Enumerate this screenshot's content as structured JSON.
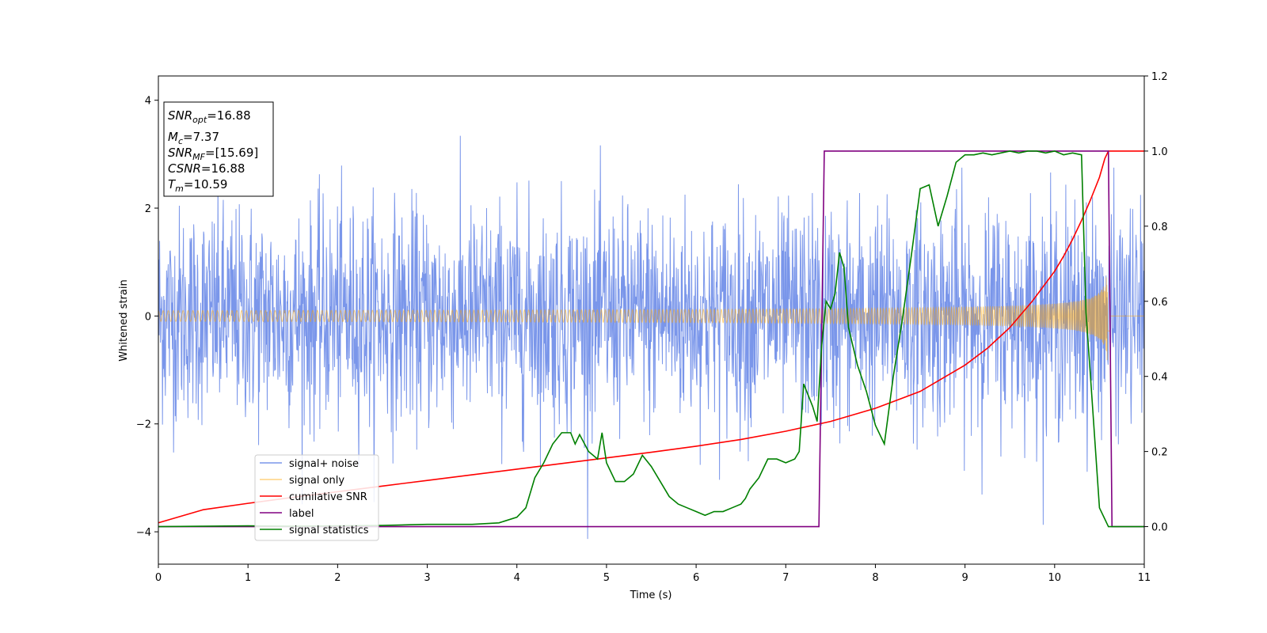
{
  "chart_data": {
    "type": "line",
    "title": "",
    "xlabel": "Time (s)",
    "ylabel": "Whitened strain",
    "y2label": "",
    "xlim": [
      0,
      11
    ],
    "ylim": [
      -4.6,
      4.45
    ],
    "y2lim": [
      -0.1,
      1.2
    ],
    "x_ticks": [
      0,
      1,
      2,
      3,
      4,
      5,
      6,
      7,
      8,
      9,
      10,
      11
    ],
    "y_ticks": [
      -4,
      -2,
      0,
      2,
      4
    ],
    "y2_ticks": [
      "0.0",
      "0.2",
      "0.4",
      "0.6",
      "0.8",
      "1.0",
      "1.2"
    ],
    "grid": false,
    "legend_position": "lower-left",
    "annotation": {
      "lines": [
        {
          "base": "SNR",
          "sub": "opt",
          "rest": "=16.88"
        },
        {
          "base": "M",
          "sub": "c",
          "rest": "=7.37"
        },
        {
          "base": "SNR",
          "sub": "MF",
          "rest": "=[15.69]"
        },
        {
          "base": "CSNR",
          "sub": "",
          "rest": "=16.88"
        },
        {
          "base": "T",
          "sub": "m",
          "rest": "=10.59"
        }
      ]
    },
    "series": [
      {
        "name": "signal+ noise",
        "axis": "left",
        "color": "#4169e1",
        "kind": "noise",
        "sigma": 1.0,
        "points": 2400
      },
      {
        "name": "signal only",
        "axis": "left",
        "color": "#ffa500",
        "kind": "chirp",
        "start_amplitude": 0.05,
        "end_amplitude": 1.15,
        "merger_time": 10.59,
        "end_time": 10.62
      },
      {
        "name": "cumilative SNR",
        "axis": "right",
        "color": "#ff0000",
        "x": [
          0,
          0.5,
          1,
          1.5,
          2,
          2.5,
          3,
          3.5,
          4,
          4.5,
          5,
          5.5,
          6,
          6.5,
          7,
          7.5,
          8,
          8.5,
          9,
          9.25,
          9.5,
          9.75,
          10,
          10.1,
          10.2,
          10.3,
          10.4,
          10.5,
          10.56,
          10.6,
          10.7,
          11
        ],
        "y": [
          0.01,
          0.045,
          0.062,
          0.078,
          0.093,
          0.108,
          0.123,
          0.138,
          0.153,
          0.168,
          0.183,
          0.198,
          0.214,
          0.232,
          0.254,
          0.28,
          0.315,
          0.36,
          0.43,
          0.475,
          0.53,
          0.6,
          0.68,
          0.72,
          0.765,
          0.815,
          0.87,
          0.93,
          0.98,
          1.0,
          1.0,
          1.0
        ]
      },
      {
        "name": "label",
        "axis": "right",
        "color": "#800080",
        "x": [
          0,
          7.37,
          7.43,
          10.6,
          10.64,
          11
        ],
        "y": [
          0.0,
          0.0,
          1.0,
          1.0,
          0.0,
          0.0
        ]
      },
      {
        "name": "signal statistics",
        "axis": "right",
        "color": "#008000",
        "x": [
          0,
          0.5,
          1,
          1.5,
          2,
          2.5,
          2.8,
          3,
          3.5,
          3.8,
          4,
          4.1,
          4.2,
          4.3,
          4.4,
          4.5,
          4.6,
          4.65,
          4.7,
          4.8,
          4.9,
          4.95,
          5,
          5.1,
          5.2,
          5.3,
          5.4,
          5.5,
          5.6,
          5.7,
          5.8,
          5.9,
          6,
          6.1,
          6.2,
          6.3,
          6.4,
          6.5,
          6.55,
          6.6,
          6.7,
          6.8,
          6.9,
          7,
          7.1,
          7.15,
          7.2,
          7.3,
          7.35,
          7.4,
          7.45,
          7.5,
          7.55,
          7.6,
          7.65,
          7.7,
          7.8,
          7.9,
          8,
          8.1,
          8.15,
          8.2,
          8.3,
          8.4,
          8.5,
          8.6,
          8.7,
          8.8,
          8.9,
          9,
          9.1,
          9.2,
          9.3,
          9.4,
          9.5,
          9.6,
          9.7,
          9.8,
          9.9,
          10,
          10.1,
          10.2,
          10.3,
          10.35,
          10.4,
          10.5,
          10.6,
          10.7,
          11
        ],
        "y": [
          0.0,
          0.001,
          0.002,
          0.001,
          0.002,
          0.003,
          0.005,
          0.006,
          0.006,
          0.01,
          0.025,
          0.05,
          0.13,
          0.17,
          0.22,
          0.25,
          0.25,
          0.22,
          0.245,
          0.2,
          0.18,
          0.25,
          0.17,
          0.12,
          0.12,
          0.14,
          0.19,
          0.16,
          0.12,
          0.08,
          0.06,
          0.05,
          0.04,
          0.03,
          0.04,
          0.04,
          0.05,
          0.06,
          0.075,
          0.1,
          0.13,
          0.18,
          0.18,
          0.17,
          0.18,
          0.2,
          0.38,
          0.32,
          0.28,
          0.48,
          0.6,
          0.58,
          0.62,
          0.73,
          0.69,
          0.53,
          0.43,
          0.36,
          0.27,
          0.22,
          0.31,
          0.4,
          0.55,
          0.72,
          0.9,
          0.91,
          0.8,
          0.88,
          0.97,
          0.99,
          0.99,
          0.995,
          0.99,
          0.995,
          1.0,
          0.995,
          1.0,
          1.0,
          0.995,
          1.0,
          0.99,
          0.995,
          0.99,
          0.57,
          0.4,
          0.05,
          0.0,
          0.0,
          0.0
        ]
      }
    ]
  }
}
